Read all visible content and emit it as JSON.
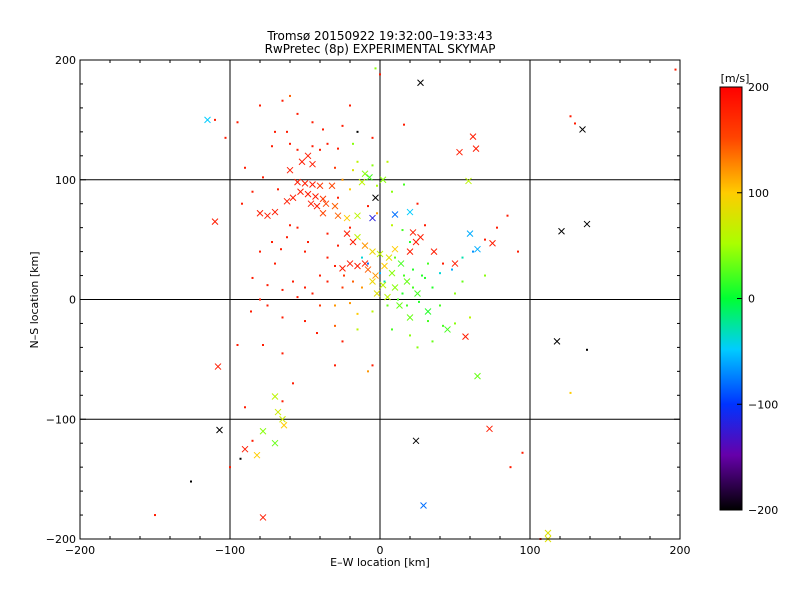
{
  "chart_data": {
    "type": "scatter",
    "title": "Tromsø 20150922 19:32:00–19:33:43",
    "subtitle": "RwPretec (8p) EXPERIMENTAL SKYMAP",
    "xlabel": "E–W location [km]",
    "ylabel": "N–S location [km]",
    "xlim": [
      -200,
      200
    ],
    "ylim": [
      -200,
      200
    ],
    "xticks": [
      "−200",
      "−100",
      "0",
      "100",
      "200"
    ],
    "yticks": [
      "200",
      "100",
      "0",
      "−100",
      "−200"
    ],
    "grid": true,
    "colorbar": {
      "label": "[m/s]",
      "range": [
        -200,
        200
      ],
      "ticks": [
        "200",
        "100",
        "0",
        "−100",
        "−200"
      ],
      "colormap": "rainbow"
    },
    "series": [
      {
        "marker": "x",
        "points": [
          [
            -115,
            150,
            -50
          ],
          [
            27,
            181,
            -220
          ],
          [
            135,
            142,
            -220
          ],
          [
            62,
            136,
            180
          ],
          [
            53,
            123,
            180
          ],
          [
            64,
            126,
            180
          ],
          [
            59,
            99,
            60
          ],
          [
            -110,
            65,
            180
          ],
          [
            -48,
            120,
            180
          ],
          [
            -52,
            115,
            180
          ],
          [
            -45,
            113,
            180
          ],
          [
            -60,
            108,
            180
          ],
          [
            -55,
            98,
            180
          ],
          [
            -50,
            97,
            180
          ],
          [
            -45,
            96,
            180
          ],
          [
            -40,
            95,
            160
          ],
          [
            -53,
            90,
            180
          ],
          [
            -48,
            88,
            180
          ],
          [
            -43,
            86,
            180
          ],
          [
            -38,
            84,
            160
          ],
          [
            -58,
            85,
            180
          ],
          [
            -62,
            82,
            180
          ],
          [
            -46,
            80,
            180
          ],
          [
            -42,
            78,
            180
          ],
          [
            -36,
            80,
            150
          ],
          [
            -30,
            78,
            140
          ],
          [
            -70,
            73,
            180
          ],
          [
            -75,
            70,
            180
          ],
          [
            -80,
            72,
            180
          ],
          [
            -38,
            72,
            150
          ],
          [
            -28,
            70,
            140
          ],
          [
            -22,
            68,
            100
          ],
          [
            -15,
            70,
            60
          ],
          [
            -32,
            95,
            150
          ],
          [
            -10,
            105,
            40
          ],
          [
            -7,
            102,
            20
          ],
          [
            -12,
            98,
            60
          ],
          [
            2,
            100,
            40
          ],
          [
            -3,
            85,
            -210
          ],
          [
            -5,
            68,
            -120
          ],
          [
            10,
            71,
            -80
          ],
          [
            20,
            73,
            -50
          ],
          [
            22,
            56,
            180
          ],
          [
            27,
            52,
            180
          ],
          [
            -22,
            55,
            180
          ],
          [
            -15,
            52,
            60
          ],
          [
            -18,
            48,
            180
          ],
          [
            -10,
            45,
            120
          ],
          [
            -5,
            40,
            90
          ],
          [
            0,
            38,
            60
          ],
          [
            20,
            40,
            180
          ],
          [
            24,
            48,
            180
          ],
          [
            10,
            42,
            100
          ],
          [
            6,
            35,
            80
          ],
          [
            -10,
            30,
            180
          ],
          [
            -15,
            28,
            180
          ],
          [
            -8,
            25,
            140
          ],
          [
            -3,
            20,
            120
          ],
          [
            3,
            28,
            100
          ],
          [
            8,
            22,
            40
          ],
          [
            14,
            30,
            20
          ],
          [
            -20,
            30,
            180
          ],
          [
            -25,
            26,
            180
          ],
          [
            -5,
            15,
            90
          ],
          [
            2,
            12,
            60
          ],
          [
            10,
            10,
            40
          ],
          [
            18,
            15,
            30
          ],
          [
            25,
            5,
            20
          ],
          [
            -2,
            5,
            80
          ],
          [
            5,
            2,
            60
          ],
          [
            13,
            -5,
            30
          ],
          [
            32,
            -10,
            10
          ],
          [
            45,
            -25,
            20
          ],
          [
            20,
            -15,
            30
          ],
          [
            36,
            40,
            180
          ],
          [
            50,
            30,
            180
          ],
          [
            60,
            55,
            -60
          ],
          [
            65,
            42,
            -60
          ],
          [
            75,
            47,
            180
          ],
          [
            121,
            57,
            -220
          ],
          [
            138,
            63,
            -220
          ],
          [
            118,
            -35,
            -220
          ],
          [
            -108,
            -56,
            180
          ],
          [
            -70,
            -81,
            60
          ],
          [
            -68,
            -94,
            70
          ],
          [
            -65,
            -100,
            70
          ],
          [
            -64,
            -105,
            100
          ],
          [
            -78,
            -110,
            40
          ],
          [
            -70,
            -120,
            30
          ],
          [
            -90,
            -125,
            180
          ],
          [
            -82,
            -130,
            100
          ],
          [
            -107,
            -109,
            -220
          ],
          [
            -78,
            -182,
            180
          ],
          [
            24,
            -118,
            -220
          ],
          [
            29,
            -172,
            -80
          ],
          [
            73,
            -108,
            180
          ],
          [
            65,
            -64,
            30
          ],
          [
            57,
            -31,
            180
          ],
          [
            112,
            -195,
            80
          ],
          [
            112,
            -200,
            80
          ]
        ]
      },
      {
        "marker": "dot",
        "points": [
          [
            -65,
            166,
            180
          ],
          [
            -80,
            162,
            180
          ],
          [
            -60,
            170,
            140
          ],
          [
            -95,
            148,
            180
          ],
          [
            -70,
            140,
            180
          ],
          [
            -60,
            130,
            180
          ],
          [
            -72,
            128,
            180
          ],
          [
            -55,
            125,
            180
          ],
          [
            -35,
            130,
            180
          ],
          [
            -18,
            130,
            40
          ],
          [
            -15,
            140,
            -220
          ],
          [
            -25,
            145,
            180
          ],
          [
            -20,
            162,
            180
          ],
          [
            -5,
            135,
            180
          ],
          [
            16,
            146,
            180
          ],
          [
            -3,
            193,
            40
          ],
          [
            0,
            188,
            180
          ],
          [
            197,
            192,
            180
          ],
          [
            127,
            153,
            180
          ],
          [
            130,
            147,
            180
          ],
          [
            -90,
            110,
            180
          ],
          [
            -78,
            102,
            180
          ],
          [
            -68,
            92,
            180
          ],
          [
            -85,
            90,
            180
          ],
          [
            -92,
            80,
            180
          ],
          [
            -55,
            60,
            180
          ],
          [
            -60,
            62,
            180
          ],
          [
            -62,
            52,
            180
          ],
          [
            -72,
            48,
            180
          ],
          [
            -80,
            40,
            180
          ],
          [
            -66,
            42,
            180
          ],
          [
            -70,
            30,
            180
          ],
          [
            -85,
            18,
            180
          ],
          [
            -75,
            12,
            180
          ],
          [
            -65,
            8,
            180
          ],
          [
            -58,
            15,
            180
          ],
          [
            -50,
            10,
            180
          ],
          [
            -55,
            2,
            180
          ],
          [
            -40,
            -5,
            160
          ],
          [
            -30,
            -5,
            120
          ],
          [
            -45,
            5,
            180
          ],
          [
            -35,
            15,
            180
          ],
          [
            -25,
            10,
            160
          ],
          [
            -20,
            -3,
            120
          ],
          [
            -15,
            -12,
            100
          ],
          [
            -30,
            -22,
            140
          ],
          [
            -42,
            -28,
            180
          ],
          [
            -50,
            -18,
            180
          ],
          [
            -65,
            -15,
            180
          ],
          [
            -75,
            -5,
            180
          ],
          [
            -86,
            -10,
            180
          ],
          [
            -80,
            0,
            180
          ],
          [
            -95,
            -38,
            180
          ],
          [
            -78,
            -38,
            180
          ],
          [
            -65,
            -45,
            180
          ],
          [
            -58,
            -70,
            180
          ],
          [
            -65,
            -85,
            180
          ],
          [
            -90,
            -90,
            180
          ],
          [
            -85,
            -118,
            180
          ],
          [
            -100,
            -140,
            180
          ],
          [
            -93,
            -133,
            -220
          ],
          [
            -126,
            -152,
            -220
          ],
          [
            -150,
            -180,
            180
          ],
          [
            -5,
            -55,
            180
          ],
          [
            -8,
            -60,
            120
          ],
          [
            20,
            -30,
            40
          ],
          [
            25,
            -40,
            40
          ],
          [
            35,
            -35,
            30
          ],
          [
            42,
            -22,
            20
          ],
          [
            50,
            -20,
            40
          ],
          [
            60,
            -15,
            60
          ],
          [
            50,
            5,
            40
          ],
          [
            55,
            15,
            30
          ],
          [
            48,
            25,
            -60
          ],
          [
            40,
            22,
            -40
          ],
          [
            30,
            18,
            10
          ],
          [
            22,
            10,
            20
          ],
          [
            15,
            5,
            10
          ],
          [
            5,
            -5,
            30
          ],
          [
            -5,
            -10,
            60
          ],
          [
            8,
            -25,
            20
          ],
          [
            32,
            -18,
            20
          ],
          [
            40,
            -5,
            20
          ],
          [
            62,
            40,
            -70
          ],
          [
            55,
            35,
            -30
          ],
          [
            70,
            20,
            40
          ],
          [
            -12,
            35,
            -40
          ],
          [
            -8,
            30,
            -80
          ],
          [
            0,
            22,
            -60
          ],
          [
            3,
            15,
            -30
          ],
          [
            10,
            35,
            30
          ],
          [
            16,
            20,
            20
          ],
          [
            22,
            25,
            10
          ],
          [
            28,
            20,
            10
          ],
          [
            35,
            10,
            10
          ],
          [
            12,
            0,
            20
          ],
          [
            18,
            -5,
            20
          ],
          [
            26,
            -2,
            10
          ],
          [
            -12,
            10,
            120
          ],
          [
            -18,
            15,
            140
          ],
          [
            -24,
            20,
            160
          ],
          [
            -30,
            28,
            180
          ],
          [
            -35,
            35,
            180
          ],
          [
            -28,
            45,
            180
          ],
          [
            -35,
            55,
            180
          ],
          [
            -48,
            48,
            180
          ],
          [
            -20,
            60,
            180
          ],
          [
            -30,
            110,
            160
          ],
          [
            -25,
            100,
            120
          ],
          [
            -18,
            108,
            80
          ],
          [
            -15,
            115,
            60
          ],
          [
            -40,
            125,
            180
          ],
          [
            -45,
            128,
            180
          ],
          [
            -28,
            85,
            180
          ],
          [
            -20,
            92,
            100
          ],
          [
            -5,
            112,
            40
          ],
          [
            5,
            115,
            60
          ],
          [
            -2,
            95,
            50
          ],
          [
            8,
            90,
            40
          ],
          [
            16,
            96,
            20
          ],
          [
            30,
            62,
            180
          ],
          [
            25,
            80,
            180
          ],
          [
            -8,
            78,
            180
          ],
          [
            -2,
            72,
            120
          ],
          [
            8,
            62,
            60
          ],
          [
            15,
            58,
            20
          ],
          [
            20,
            48,
            10
          ],
          [
            32,
            30,
            20
          ],
          [
            42,
            30,
            180
          ],
          [
            70,
            50,
            180
          ],
          [
            85,
            70,
            180
          ],
          [
            78,
            60,
            180
          ],
          [
            92,
            40,
            180
          ],
          [
            127,
            -78,
            100
          ],
          [
            138,
            -42,
            -220
          ],
          [
            87,
            -140,
            180
          ],
          [
            95,
            -128,
            180
          ],
          [
            107,
            -200,
            180
          ],
          [
            -110,
            150,
            180
          ],
          [
            -103,
            135,
            180
          ],
          [
            -50,
            40,
            180
          ],
          [
            -40,
            20,
            180
          ],
          [
            -15,
            -25,
            60
          ],
          [
            -25,
            -35,
            180
          ],
          [
            -30,
            -55,
            180
          ],
          [
            -62,
            140,
            180
          ],
          [
            -55,
            155,
            180
          ],
          [
            -45,
            148,
            180
          ],
          [
            -38,
            142,
            180
          ],
          [
            -28,
            126,
            180
          ]
        ]
      }
    ]
  }
}
